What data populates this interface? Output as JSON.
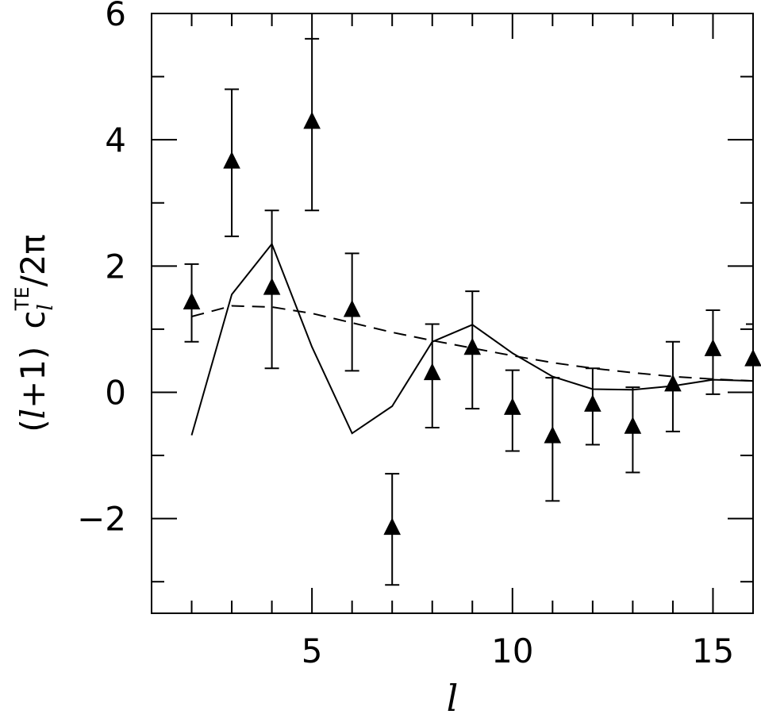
{
  "chart_data": {
    "type": "scatter",
    "title": "",
    "xlabel": "l",
    "ylabel": "(l+1) c_l^TE / 2π",
    "ylabel_parts": {
      "open": "(",
      "ell": "l",
      "plus_one": "+1)",
      "c": "c",
      "sub": "l",
      "sup": "TE",
      "tail": "/2π"
    },
    "xlim": [
      1,
      16
    ],
    "ylim": [
      -3.5,
      6
    ],
    "x_ticks": [
      5,
      10,
      15
    ],
    "x_tick_labels": [
      "5",
      "10",
      "15"
    ],
    "y_ticks": [
      -2,
      0,
      2,
      4,
      6
    ],
    "y_tick_labels": [
      "−2",
      "0",
      "2",
      "4",
      "6"
    ],
    "grid": false,
    "legend": "none",
    "series": [
      {
        "kind": "points_with_errorbars",
        "marker": "triangle",
        "x": [
          2,
          3,
          4,
          5,
          6,
          7,
          8,
          9,
          10,
          11,
          12,
          13,
          14,
          15,
          16
        ],
        "y": [
          1.42,
          3.65,
          1.65,
          4.28,
          1.3,
          -2.15,
          0.3,
          0.7,
          -0.25,
          -0.7,
          -0.2,
          -0.55,
          0.12,
          0.68,
          0.52
        ],
        "y_low": [
          0.8,
          2.47,
          0.38,
          2.88,
          0.34,
          -3.05,
          -0.56,
          -0.26,
          -0.93,
          -1.72,
          -0.83,
          -1.27,
          -0.62,
          -0.03,
          null
        ],
        "y_high": [
          2.03,
          4.8,
          2.88,
          5.6,
          2.2,
          -1.29,
          1.08,
          1.6,
          0.35,
          0.23,
          0.38,
          0.08,
          0.8,
          1.3,
          1.08
        ]
      },
      {
        "kind": "line",
        "style": "solid",
        "x": [
          2,
          3,
          4,
          5,
          6,
          7,
          8,
          9,
          10,
          11,
          12,
          13,
          14,
          15,
          16
        ],
        "y": [
          -0.68,
          1.55,
          2.35,
          0.72,
          -0.65,
          -0.22,
          0.8,
          1.07,
          0.62,
          0.25,
          0.05,
          0.04,
          0.1,
          0.2,
          0.18
        ]
      },
      {
        "kind": "line",
        "style": "dashed",
        "x": [
          2,
          3,
          4,
          5,
          6,
          7,
          8,
          9,
          10,
          11,
          12,
          13,
          14,
          15,
          16
        ],
        "y": [
          1.2,
          1.37,
          1.35,
          1.25,
          1.1,
          0.95,
          0.82,
          0.7,
          0.58,
          0.47,
          0.38,
          0.31,
          0.25,
          0.21,
          0.18
        ]
      }
    ]
  }
}
